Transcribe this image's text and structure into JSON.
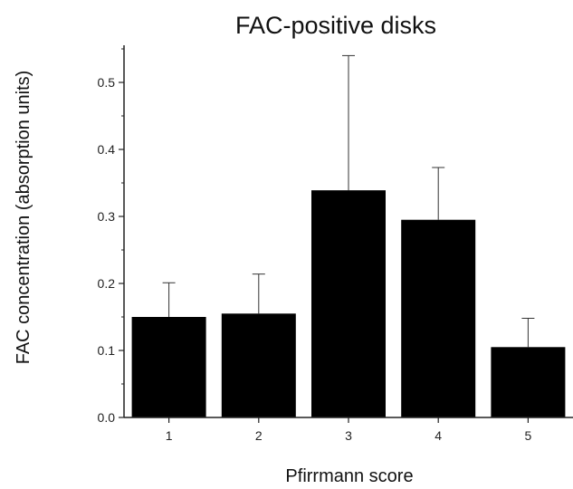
{
  "chart_data": {
    "type": "bar",
    "title": "FAC-positive disks",
    "xlabel": "Pfirrmann score",
    "ylabel": "FAC concentration (absorption units)",
    "categories": [
      "1",
      "2",
      "3",
      "4",
      "5"
    ],
    "values": [
      0.15,
      0.155,
      0.339,
      0.295,
      0.105
    ],
    "error_bars": [
      0.051,
      0.059,
      0.201,
      0.078,
      0.043
    ],
    "ylim": [
      0,
      0.55
    ],
    "yticks": [
      "0.0",
      "0.1",
      "0.2",
      "0.3",
      "0.4",
      "0.5"
    ],
    "grid": false,
    "legend": "none",
    "bar_color": "#000000"
  }
}
